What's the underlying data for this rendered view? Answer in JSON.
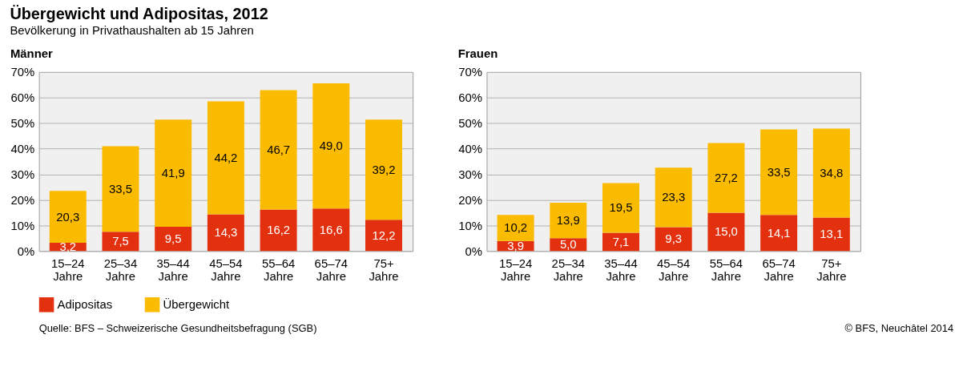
{
  "chart_data": [
    {
      "type": "bar",
      "title": "Männer",
      "stacked": true,
      "grid": "y",
      "legend": "bottom",
      "annotations": [
        "Übergewicht und Adipositas, 2012",
        "Bevölkerung in Privathaushalten ab 15 Jahren",
        "Quelle: BFS – Schweizerische Gesundheitsbefragung (SGB)",
        "© BFS, Neuchâtel 2014"
      ],
      "categories": [
        "15–24 Jahre",
        "25–34 Jahre",
        "35–44 Jahre",
        "45–54 Jahre",
        "55–64 Jahre",
        "65–74 Jahre",
        "75+ Jahre"
      ],
      "ylim": [
        0,
        70
      ],
      "yticks": [
        {
          "value": 0,
          "label": "0%"
        },
        {
          "value": 10,
          "label": "10%"
        },
        {
          "value": 20,
          "label": "20%"
        },
        {
          "value": 30,
          "label": "30%"
        },
        {
          "value": 40,
          "label": "40%"
        },
        {
          "value": 50,
          "label": "50%"
        },
        {
          "value": 60,
          "label": "60%"
        },
        {
          "value": 70,
          "label": "70%"
        }
      ],
      "series": [
        {
          "name": "Adipositas",
          "color": "#e3310f",
          "values": [
            3.2,
            7.5,
            9.5,
            14.3,
            16.2,
            16.6,
            12.2
          ],
          "value_labels": [
            "3,2",
            "7,5",
            "9,5",
            "14,3",
            "16,2",
            "16,6",
            "12,2"
          ]
        },
        {
          "name": "Übergewicht",
          "color": "#fbbb00",
          "values": [
            20.3,
            33.5,
            41.9,
            44.2,
            46.7,
            49.0,
            39.2
          ],
          "value_labels": [
            "20,3",
            "33,5",
            "41,9",
            "44,2",
            "46,7",
            "49,0",
            "39,2"
          ]
        }
      ]
    },
    {
      "type": "bar",
      "title": "Frauen",
      "stacked": true,
      "grid": "y",
      "categories": [
        "15–24 Jahre",
        "25–34 Jahre",
        "35–44 Jahre",
        "45–54 Jahre",
        "55–64 Jahre",
        "65–74 Jahre",
        "75+ Jahre"
      ],
      "ylim": [
        0,
        70
      ],
      "yticks": [
        {
          "value": 0,
          "label": "0%"
        },
        {
          "value": 10,
          "label": "10%"
        },
        {
          "value": 20,
          "label": "20%"
        },
        {
          "value": 30,
          "label": "30%"
        },
        {
          "value": 40,
          "label": "40%"
        },
        {
          "value": 50,
          "label": "50%"
        },
        {
          "value": 60,
          "label": "60%"
        },
        {
          "value": 70,
          "label": "70%"
        }
      ],
      "series": [
        {
          "color": "#e3310f",
          "values": [
            3.9,
            5.0,
            7.1,
            9.3,
            15.0,
            14.1,
            13.1
          ],
          "value_labels": [
            "3,9",
            "5,0",
            "7,1",
            "9,3",
            "15,0",
            "14,1",
            "13,1"
          ]
        },
        {
          "color": "#fbbb00",
          "values": [
            10.2,
            13.9,
            19.5,
            23.3,
            27.2,
            33.5,
            34.8
          ],
          "value_labels": [
            "10,2",
            "13,9",
            "19,5",
            "23,3",
            "27,2",
            "33,5",
            "34,8"
          ]
        }
      ]
    }
  ]
}
